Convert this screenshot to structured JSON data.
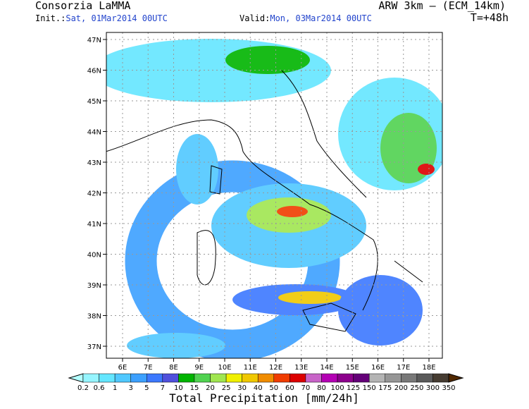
{
  "header": {
    "title": "Consorzia LaMMA",
    "model": "ARW 3km – (ECM_14km)",
    "init_label": "Init.:",
    "init_time": "Sat, 01Mar2014 00UTC",
    "valid_label": "Valid:",
    "valid_time": "Mon, 03Mar2014 00UTC",
    "lead_time": "T=+48h"
  },
  "map": {
    "lat_labels": [
      "47N",
      "46N",
      "45N",
      "44N",
      "43N",
      "42N",
      "41N",
      "40N",
      "39N",
      "38N",
      "37N"
    ],
    "lon_labels": [
      "6E",
      "7E",
      "8E",
      "9E",
      "10E",
      "11E",
      "12E",
      "13E",
      "14E",
      "15E",
      "16E",
      "17E",
      "18E"
    ]
  },
  "colorbar": {
    "title": "Total Precipitation [mm/24h]",
    "labels": [
      "0.2",
      "0.6",
      "1",
      "3",
      "5",
      "7",
      "10",
      "15",
      "20",
      "25",
      "30",
      "40",
      "50",
      "60",
      "70",
      "80",
      "100",
      "125",
      "150",
      "175",
      "200",
      "250",
      "300",
      "350"
    ],
    "colors": [
      "#b4ffff",
      "#96f5ff",
      "#64e6ff",
      "#50c8ff",
      "#3ca0ff",
      "#3c78ff",
      "#5050dc",
      "#00b400",
      "#50d250",
      "#a0e650",
      "#f0f000",
      "#f0c800",
      "#f08c00",
      "#f03c00",
      "#dc0000",
      "#c864c8",
      "#b400b4",
      "#8c008c",
      "#640078",
      "#b4b4b4",
      "#969696",
      "#787878",
      "#5a5a5a",
      "#463c32",
      "#502800"
    ]
  }
}
